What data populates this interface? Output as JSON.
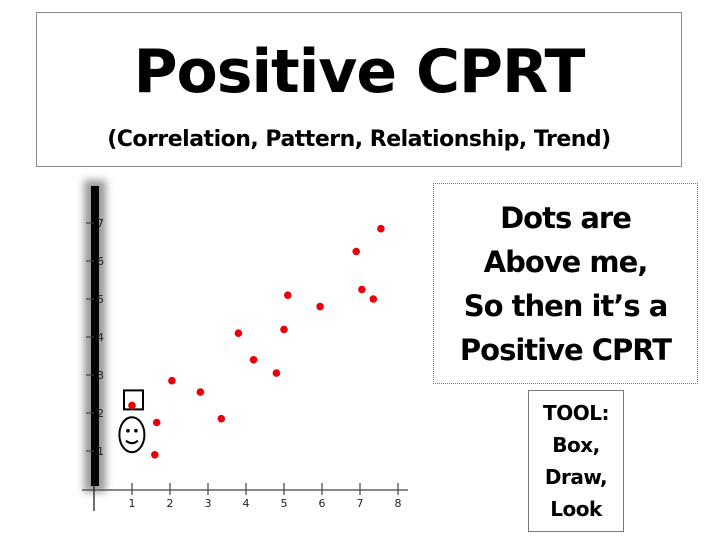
{
  "header": {
    "title": "Positive CPRT",
    "subtitle": "(Correlation, Pattern, Relationship, Trend)"
  },
  "note": {
    "lines": [
      "Dots are",
      "Above me,",
      "So then it’s a",
      "Positive CPRT"
    ]
  },
  "tool": {
    "lines": [
      "TOOL:",
      "Box,",
      "Draw,",
      "Look"
    ]
  },
  "colors": {
    "dot": "#e8000b",
    "axis": "#444444",
    "bar": "#000000"
  },
  "chart_data": {
    "type": "scatter",
    "title": "",
    "xlabel": "",
    "ylabel": "",
    "x_ticks": [
      1,
      2,
      3,
      4,
      5,
      6,
      7,
      8
    ],
    "y_ticks": [
      1,
      2,
      3,
      4,
      5,
      6,
      7
    ],
    "xlim": [
      0,
      8.3
    ],
    "ylim": [
      0,
      7.6
    ],
    "grid": false,
    "legend": null,
    "series": [
      {
        "name": "points",
        "points": [
          {
            "x": 1.0,
            "y": 2.2
          },
          {
            "x": 1.6,
            "y": 0.9
          },
          {
            "x": 1.65,
            "y": 1.75
          },
          {
            "x": 2.05,
            "y": 2.85
          },
          {
            "x": 2.8,
            "y": 2.55
          },
          {
            "x": 3.35,
            "y": 1.85
          },
          {
            "x": 3.8,
            "y": 4.1
          },
          {
            "x": 4.2,
            "y": 3.4
          },
          {
            "x": 4.8,
            "y": 3.05
          },
          {
            "x": 5.0,
            "y": 4.2
          },
          {
            "x": 5.1,
            "y": 5.1
          },
          {
            "x": 5.95,
            "y": 4.8
          },
          {
            "x": 6.9,
            "y": 6.25
          },
          {
            "x": 7.05,
            "y": 5.25
          },
          {
            "x": 7.35,
            "y": 5.0
          },
          {
            "x": 7.55,
            "y": 6.85
          }
        ]
      }
    ],
    "annotations": [
      {
        "type": "box",
        "label": "box-tool",
        "around_point": {
          "x": 1.0,
          "y": 2.2
        }
      },
      {
        "type": "smiley-face",
        "label": "look",
        "position": {
          "x": 1.05,
          "y": 1.35
        }
      },
      {
        "type": "vertical-bar",
        "label": "y-axis-marker",
        "x": 0
      }
    ]
  }
}
